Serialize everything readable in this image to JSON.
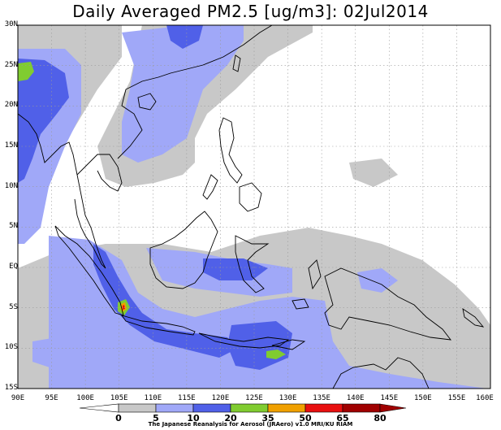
{
  "title": "Daily Averaged PM2.5 [ug/m3]: 02Jul2014",
  "map": {
    "lon_range": [
      90,
      160
    ],
    "lat_range": [
      -15,
      30
    ],
    "lat_ticks": [
      {
        "value": 30,
        "label": "30N"
      },
      {
        "value": 25,
        "label": "25N"
      },
      {
        "value": 20,
        "label": "20N"
      },
      {
        "value": 15,
        "label": "15N"
      },
      {
        "value": 10,
        "label": "10N"
      },
      {
        "value": 5,
        "label": "5N"
      },
      {
        "value": 0,
        "label": "EQ"
      },
      {
        "value": -5,
        "label": "5S"
      },
      {
        "value": -10,
        "label": "10S"
      },
      {
        "value": -15,
        "label": "15S"
      }
    ],
    "lon_ticks": [
      {
        "value": 90,
        "label": "90E"
      },
      {
        "value": 95,
        "label": "95E"
      },
      {
        "value": 100,
        "label": "100E"
      },
      {
        "value": 105,
        "label": "105E"
      },
      {
        "value": 110,
        "label": "110E"
      },
      {
        "value": 115,
        "label": "115E"
      },
      {
        "value": 120,
        "label": "120E"
      },
      {
        "value": 125,
        "label": "125E"
      },
      {
        "value": 130,
        "label": "130E"
      },
      {
        "value": 135,
        "label": "135E"
      },
      {
        "value": 140,
        "label": "140E"
      },
      {
        "value": 145,
        "label": "145E"
      },
      {
        "value": 150,
        "label": "150E"
      },
      {
        "value": 155,
        "label": "155E"
      },
      {
        "value": 160,
        "label": "160E"
      }
    ]
  },
  "colorbar": {
    "labels": [
      "0",
      "5",
      "10",
      "20",
      "35",
      "50",
      "65",
      "80"
    ],
    "colors": [
      "#ffffff",
      "#c8c8c8",
      "#a0a8f8",
      "#5060e8",
      "#80cc30",
      "#f0a000",
      "#e81010",
      "#a00000"
    ]
  },
  "credit": "The Japanese Reanalysis for Aerosol (JRAero) v1.0 MRI/KU RIAM"
}
